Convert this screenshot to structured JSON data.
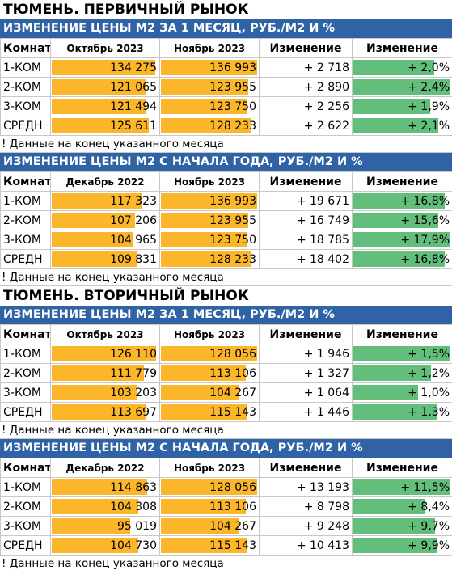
{
  "sections": [
    {
      "title": "ТЮМЕНЬ. ПЕРВИЧНЫЙ РЫНОК",
      "tables": [
        {
          "heading": "ИЗМЕНЕНИЕ ЦЕНЫ М2 ЗА 1 МЕСЯЦ, РУБ./М2 И %",
          "columns": [
            "Комнат",
            "Октябрь 2023",
            "Ноябрь 2023",
            "Изменение",
            "Изменение"
          ],
          "rows": [
            [
              "1-КОМ",
              "134 275",
              "136 993",
              "+ 2 718",
              "+ 2,0%"
            ],
            [
              "2-КОМ",
              "121 065",
              "123 955",
              "+ 2 890",
              "+ 2,4%"
            ],
            [
              "3-КОМ",
              "121 494",
              "123 750",
              "+ 2 256",
              "+ 1,9%"
            ],
            [
              "СРЕДН",
              "125 611",
              "128 233",
              "+ 2 622",
              "+ 2,1%"
            ]
          ],
          "note": "! Данные на конец указанного месяца"
        },
        {
          "heading": "ИЗМЕНЕНИЕ ЦЕНЫ М2 С НАЧАЛА ГОДА, РУБ./М2 И %",
          "columns": [
            "Комнат",
            "Декабрь 2022",
            "Ноябрь 2023",
            "Изменение",
            "Изменение"
          ],
          "rows": [
            [
              "1-КОМ",
              "117 323",
              "136 993",
              "+ 19 671",
              "+ 16,8%"
            ],
            [
              "2-КОМ",
              "107 206",
              "123 955",
              "+ 16 749",
              "+ 15,6%"
            ],
            [
              "3-КОМ",
              "104 965",
              "123 750",
              "+ 18 785",
              "+ 17,9%"
            ],
            [
              "СРЕДН",
              "109 831",
              "128 233",
              "+ 18 402",
              "+ 16,8%"
            ]
          ],
          "note": "! Данные на конец указанного месяца"
        }
      ]
    },
    {
      "title": "ТЮМЕНЬ. ВТОРИЧНЫЙ РЫНОК",
      "tables": [
        {
          "heading": "ИЗМЕНЕНИЕ ЦЕНЫ М2 ЗА 1 МЕСЯЦ, РУБ./М2 И %",
          "columns": [
            "Комнат",
            "Октябрь 2023",
            "Ноябрь 2023",
            "Изменение",
            "Изменение"
          ],
          "rows": [
            [
              "1-КОМ",
              "126 110",
              "128 056",
              "+ 1 946",
              "+ 1,5%"
            ],
            [
              "2-КОМ",
              "111 779",
              "113 106",
              "+ 1 327",
              "+ 1,2%"
            ],
            [
              "3-КОМ",
              "103 203",
              "104 267",
              "+ 1 064",
              "+ 1,0%"
            ],
            [
              "СРЕДН",
              "113 697",
              "115 143",
              "+ 1 446",
              "+ 1,3%"
            ]
          ],
          "note": "! Данные на конец указанного месяца"
        },
        {
          "heading": "ИЗМЕНЕНИЕ ЦЕНЫ М2 С НАЧАЛА ГОДА, РУБ./М2 И %",
          "columns": [
            "Комнат",
            "Декабрь 2022",
            "Ноябрь 2023",
            "Изменение",
            "Изменение"
          ],
          "rows": [
            [
              "1-КОМ",
              "114 863",
              "128 056",
              "+ 13 193",
              "+ 11,5%"
            ],
            [
              "2-КОМ",
              "104 308",
              "113 106",
              "+ 8 798",
              "+ 8,4%"
            ],
            [
              "3-КОМ",
              "95 019",
              "104 267",
              "+ 9 248",
              "+ 9,7%"
            ],
            [
              "СРЕДН",
              "104 730",
              "115 143",
              "+ 10 413",
              "+ 9,9%"
            ]
          ],
          "note": "! Данные на конец указанного месяца"
        }
      ]
    }
  ]
}
